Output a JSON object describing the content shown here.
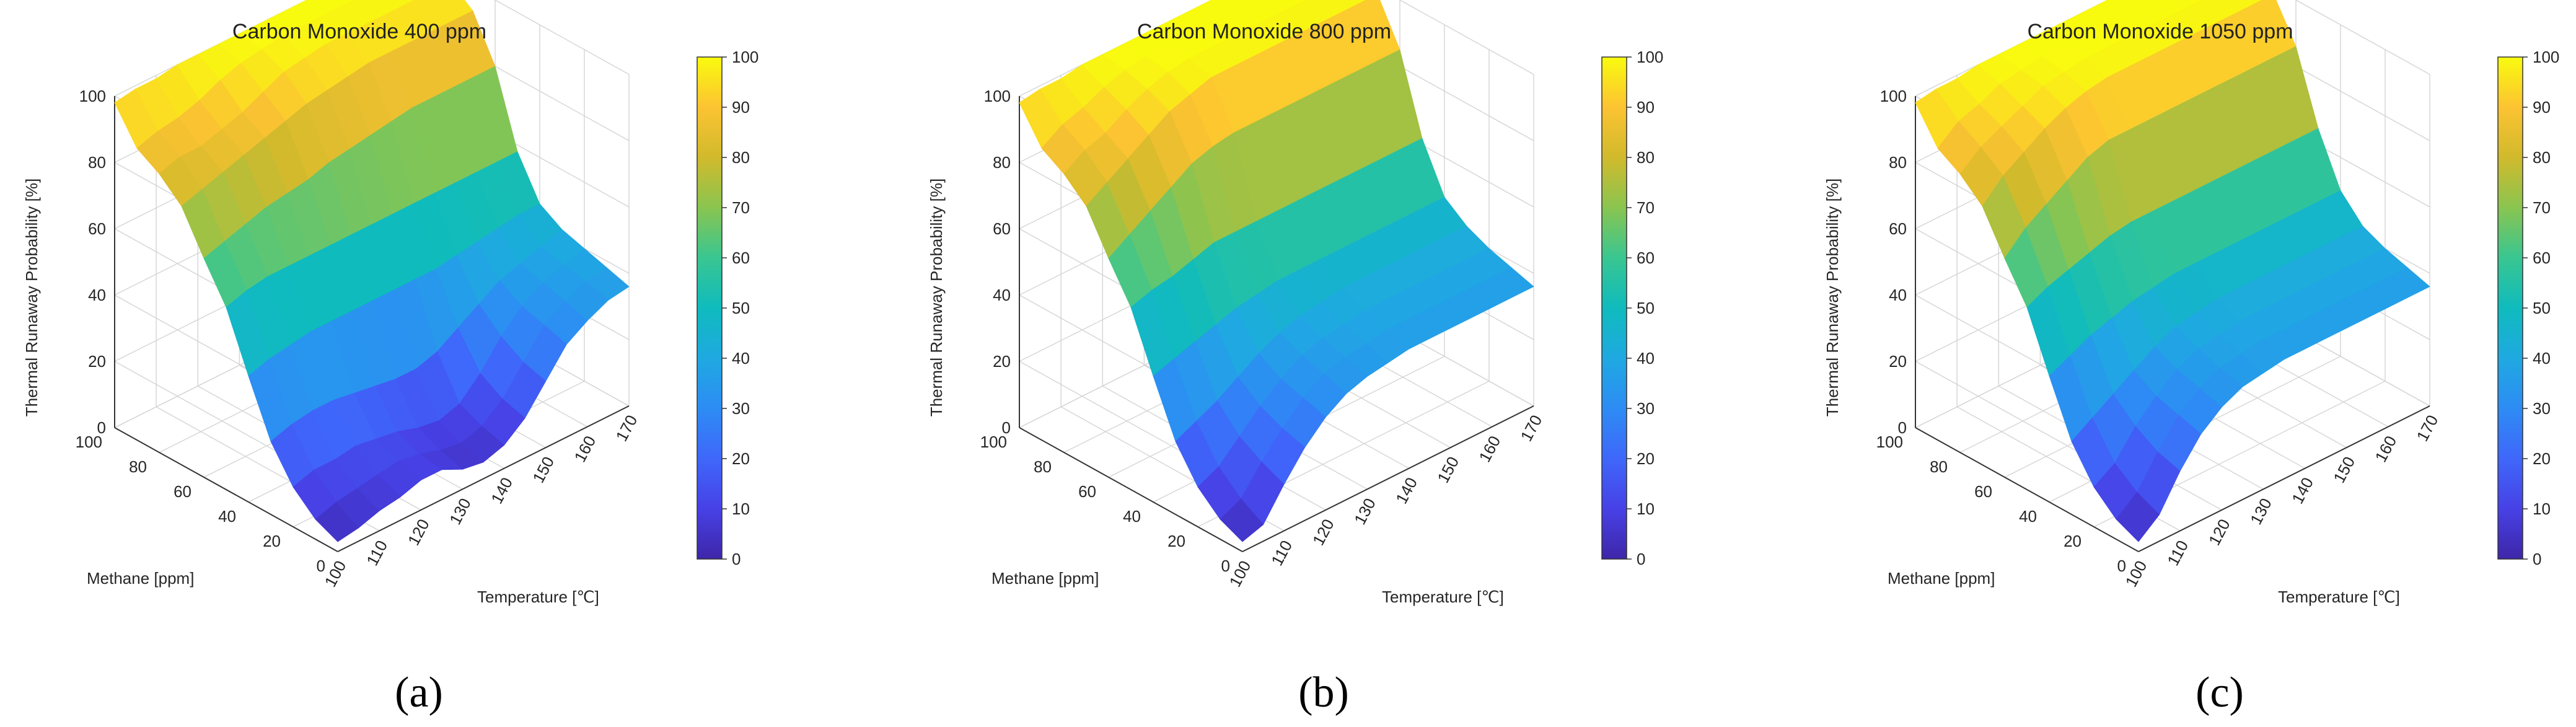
{
  "figure": {
    "captions": [
      "(a)",
      "(b)",
      "(c)"
    ]
  },
  "chart_data": [
    {
      "type": "surface3d",
      "title": "Carbon Monoxide 400 ppm",
      "xlabel": "Temperature [℃]",
      "ylabel": "Methane [ppm]",
      "zlabel": "Thermal Runaway Probability [%]",
      "xlim": [
        100,
        170
      ],
      "ylim": [
        0,
        100
      ],
      "zlim": [
        0,
        100
      ],
      "x_ticks": [
        "100",
        "110",
        "120",
        "130",
        "140",
        "150",
        "160",
        "170"
      ],
      "y_ticks": [
        "0",
        "20",
        "40",
        "60",
        "80",
        "100"
      ],
      "z_ticks": [
        "0",
        "20",
        "40",
        "60",
        "80",
        "100"
      ],
      "colorbar": {
        "min": 0,
        "max": 100,
        "ticks": [
          "0",
          "10",
          "20",
          "30",
          "40",
          "50",
          "60",
          "70",
          "80",
          "90",
          "100"
        ],
        "colormap": "parula"
      },
      "methane": [
        0,
        10,
        20,
        30,
        40,
        50,
        60,
        70,
        80,
        90,
        100
      ],
      "temperature": [
        100,
        105,
        110,
        115,
        120,
        125,
        130,
        135,
        140,
        145,
        150,
        155,
        160,
        165,
        170
      ],
      "probability": [
        [
          3,
          4,
          6,
          7,
          9,
          9,
          6,
          5,
          7,
          12,
          20,
          28,
          32,
          35,
          36
        ],
        [
          6,
          8,
          9,
          10,
          11,
          10,
          8,
          7,
          9,
          14,
          22,
          30,
          34,
          37,
          38
        ],
        [
          12,
          14,
          14,
          15,
          14,
          13,
          11,
          10,
          12,
          18,
          26,
          32,
          36,
          38,
          40
        ],
        [
          22,
          24,
          25,
          25,
          24,
          23,
          22,
          22,
          24,
          28,
          32,
          36,
          38,
          40,
          42
        ],
        [
          38,
          40,
          41,
          42,
          42,
          42,
          42,
          42,
          42,
          42,
          43,
          44,
          45,
          46,
          46
        ],
        [
          55,
          57,
          58,
          58,
          58,
          58,
          58,
          58,
          58,
          58,
          58,
          58,
          58,
          58,
          58
        ],
        [
          66,
          68,
          70,
          72,
          73,
          74,
          76,
          77,
          78,
          79,
          80,
          80,
          80,
          80,
          80
        ],
        [
          78,
          80,
          82,
          84,
          86,
          88,
          90,
          91,
          92,
          93,
          93,
          93,
          93,
          93,
          93
        ],
        [
          84,
          86,
          86,
          88,
          90,
          93,
          96,
          97,
          98,
          98,
          98,
          98,
          98,
          98,
          98
        ],
        [
          88,
          90,
          91,
          93,
          96,
          98,
          99,
          100,
          100,
          100,
          100,
          100,
          100,
          100,
          100
        ],
        [
          98,
          99,
          99,
          100,
          100,
          100,
          100,
          100,
          100,
          100,
          100,
          100,
          100,
          100,
          100
        ]
      ]
    },
    {
      "type": "surface3d",
      "title": "Carbon Monoxide 800 ppm",
      "xlabel": "Temperature [℃]",
      "ylabel": "Methane [ppm]",
      "zlabel": "Thermal Runaway Probability [%]",
      "xlim": [
        100,
        170
      ],
      "ylim": [
        0,
        100
      ],
      "zlim": [
        0,
        100
      ],
      "x_ticks": [
        "100",
        "110",
        "120",
        "130",
        "140",
        "150",
        "160",
        "170"
      ],
      "y_ticks": [
        "0",
        "20",
        "40",
        "60",
        "80",
        "100"
      ],
      "z_ticks": [
        "0",
        "20",
        "40",
        "60",
        "80",
        "100"
      ],
      "colorbar": {
        "min": 0,
        "max": 100,
        "ticks": [
          "0",
          "10",
          "20",
          "30",
          "40",
          "50",
          "60",
          "70",
          "80",
          "90",
          "100"
        ],
        "colormap": "parula"
      },
      "methane": [
        0,
        10,
        20,
        30,
        40,
        50,
        60,
        70,
        80,
        90,
        100
      ],
      "temperature": [
        100,
        105,
        110,
        115,
        120,
        125,
        130,
        135,
        140,
        145,
        150,
        155,
        160,
        165,
        170
      ],
      "probability": [
        [
          3,
          5,
          14,
          22,
          28,
          32,
          34,
          35,
          36,
          36,
          36,
          36,
          36,
          36,
          36
        ],
        [
          6,
          9,
          17,
          24,
          30,
          34,
          36,
          37,
          38,
          38,
          38,
          38,
          38,
          38,
          38
        ],
        [
          12,
          15,
          21,
          27,
          32,
          36,
          38,
          39,
          40,
          40,
          40,
          40,
          40,
          40,
          40
        ],
        [
          22,
          25,
          28,
          32,
          36,
          39,
          41,
          42,
          43,
          43,
          43,
          43,
          43,
          43,
          43
        ],
        [
          38,
          40,
          42,
          44,
          46,
          47,
          48,
          48,
          48,
          48,
          48,
          48,
          48,
          48,
          48
        ],
        [
          55,
          57,
          58,
          60,
          62,
          62,
          62,
          62,
          62,
          62,
          62,
          62,
          62,
          62,
          62
        ],
        [
          66,
          70,
          74,
          78,
          82,
          84,
          85,
          85,
          85,
          85,
          85,
          85,
          85,
          85,
          85
        ],
        [
          78,
          82,
          86,
          90,
          94,
          96,
          98,
          98,
          98,
          98,
          98,
          98,
          98,
          98,
          98
        ],
        [
          84,
          88,
          90,
          94,
          97,
          99,
          100,
          100,
          100,
          100,
          100,
          100,
          100,
          100,
          100
        ],
        [
          88,
          92,
          94,
          97,
          99,
          100,
          100,
          100,
          100,
          100,
          100,
          100,
          100,
          100,
          100
        ],
        [
          98,
          99,
          99,
          100,
          100,
          100,
          100,
          100,
          100,
          100,
          100,
          100,
          100,
          100,
          100
        ]
      ]
    },
    {
      "type": "surface3d",
      "title": "Carbon Monoxide 1050 ppm",
      "xlabel": "Temperature [℃]",
      "ylabel": "Methane [ppm]",
      "zlabel": "Thermal Runaway Probability [%]",
      "xlim": [
        100,
        170
      ],
      "ylim": [
        0,
        100
      ],
      "zlim": [
        0,
        100
      ],
      "x_ticks": [
        "100",
        "110",
        "120",
        "130",
        "140",
        "150",
        "160",
        "170"
      ],
      "y_ticks": [
        "0",
        "20",
        "40",
        "60",
        "80",
        "100"
      ],
      "z_ticks": [
        "0",
        "20",
        "40",
        "60",
        "80",
        "100"
      ],
      "colorbar": {
        "min": 0,
        "max": 100,
        "ticks": [
          "0",
          "10",
          "20",
          "30",
          "40",
          "50",
          "60",
          "70",
          "80",
          "90",
          "100"
        ],
        "colormap": "parula"
      },
      "methane": [
        0,
        10,
        20,
        30,
        40,
        50,
        60,
        70,
        80,
        90,
        100
      ],
      "temperature": [
        100,
        105,
        110,
        115,
        120,
        125,
        130,
        135,
        140,
        145,
        150,
        155,
        160,
        165,
        170
      ],
      "probability": [
        [
          3,
          8,
          18,
          26,
          31,
          34,
          35,
          36,
          36,
          36,
          36,
          36,
          36,
          36,
          36
        ],
        [
          6,
          11,
          20,
          28,
          33,
          36,
          37,
          38,
          38,
          38,
          38,
          38,
          38,
          38,
          38
        ],
        [
          12,
          16,
          24,
          30,
          35,
          38,
          39,
          40,
          40,
          40,
          40,
          40,
          40,
          40,
          40
        ],
        [
          22,
          26,
          30,
          34,
          38,
          41,
          42,
          43,
          43,
          43,
          43,
          43,
          43,
          43,
          43
        ],
        [
          38,
          41,
          44,
          46,
          48,
          49,
          50,
          50,
          50,
          50,
          50,
          50,
          50,
          50,
          50
        ],
        [
          55,
          58,
          60,
          62,
          64,
          65,
          65,
          65,
          65,
          65,
          65,
          65,
          65,
          65,
          65
        ],
        [
          66,
          72,
          76,
          80,
          84,
          86,
          86,
          86,
          86,
          86,
          86,
          86,
          86,
          86,
          86
        ],
        [
          78,
          84,
          88,
          92,
          95,
          97,
          98,
          98,
          98,
          98,
          98,
          98,
          98,
          98,
          98
        ],
        [
          84,
          89,
          92,
          95,
          98,
          99,
          100,
          100,
          100,
          100,
          100,
          100,
          100,
          100,
          100
        ],
        [
          88,
          93,
          95,
          98,
          99,
          100,
          100,
          100,
          100,
          100,
          100,
          100,
          100,
          100,
          100
        ],
        [
          98,
          99,
          99,
          100,
          100,
          100,
          100,
          100,
          100,
          100,
          100,
          100,
          100,
          100,
          100
        ]
      ]
    }
  ]
}
